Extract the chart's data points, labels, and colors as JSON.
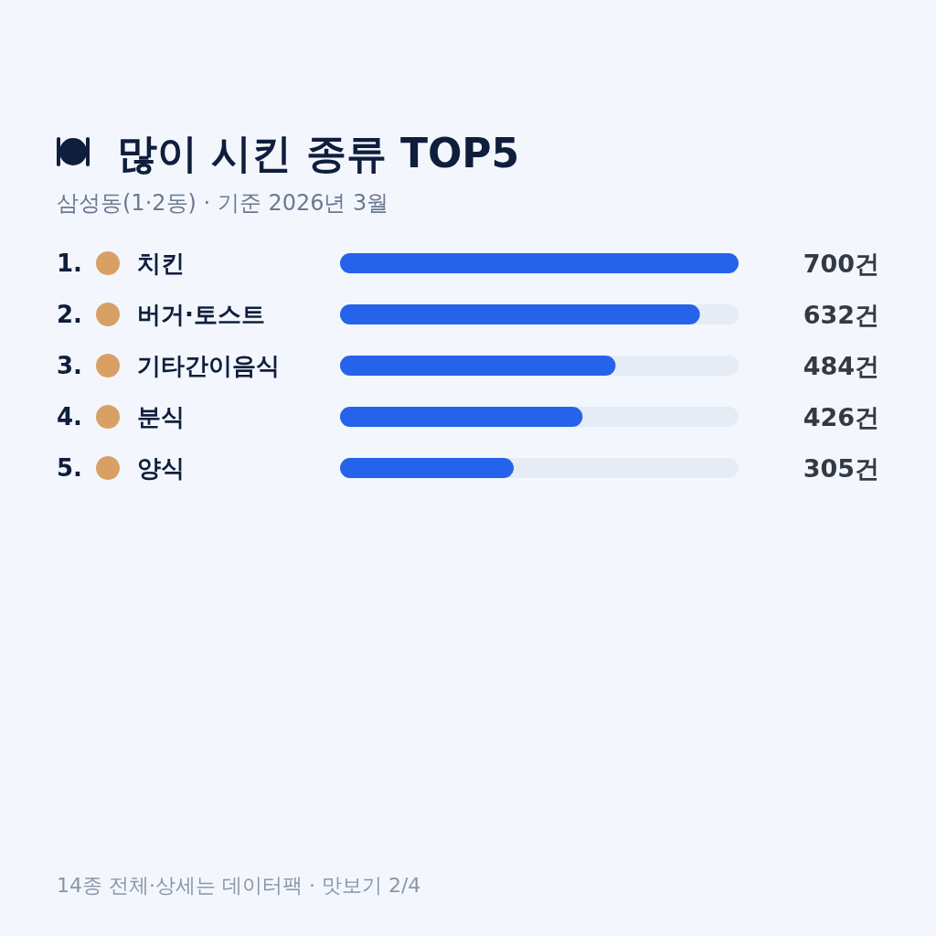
{
  "chart_data": {
    "type": "bar",
    "orientation": "horizontal",
    "title": "많이 시킨 종류 TOP5",
    "subtitle": "삼성동(1·2동) · 기준 2026년 3월",
    "categories": [
      "1. 치킨",
      "2. 버거·토스트",
      "3. 기타간이음식",
      "4. 분식",
      "5. 양식"
    ],
    "values": [
      700,
      632,
      484,
      426,
      305
    ],
    "value_labels": [
      "700건",
      "632건",
      "484건",
      "426건",
      "305건"
    ],
    "color": "#2563eb",
    "xlim": [
      0,
      700
    ],
    "annotations": [
      "14종 전체·상세는 데이터팩 · 맛보기 2/4"
    ]
  }
}
